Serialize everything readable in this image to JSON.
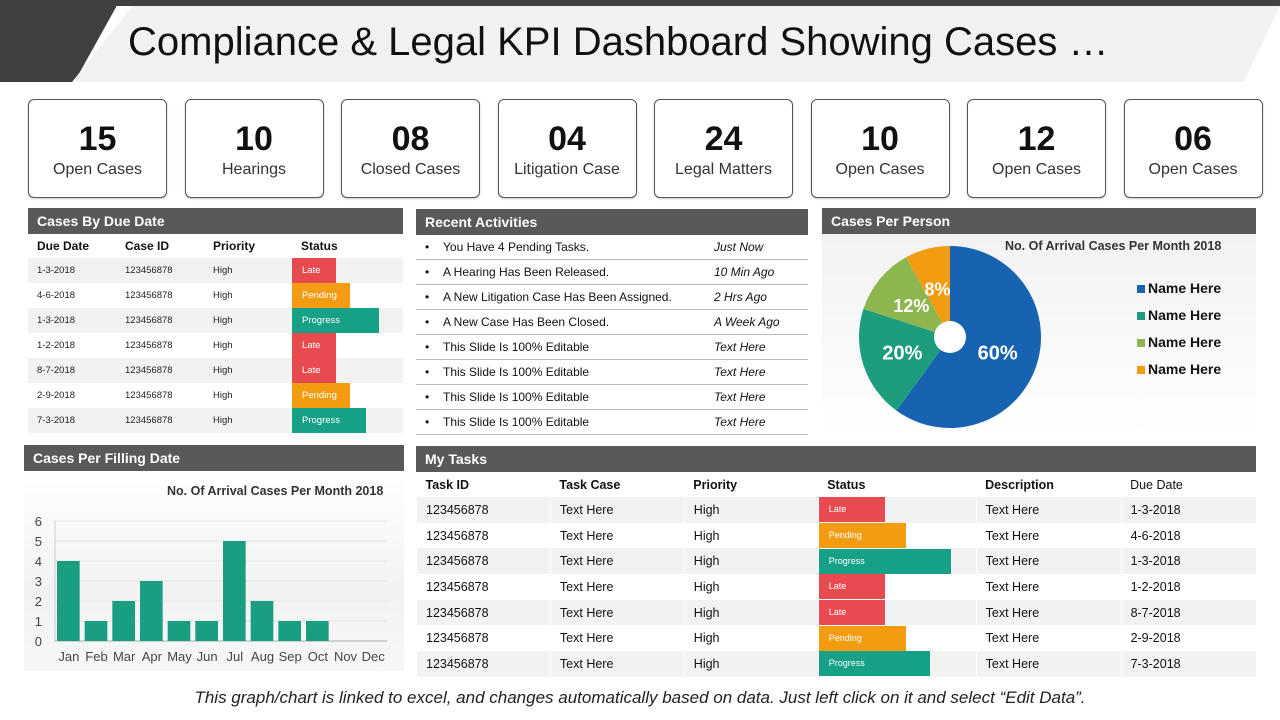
{
  "title": "Compliance & Legal KPI Dashboard Showing Cases …",
  "kpis": [
    {
      "value": "15",
      "label": "Open Cases"
    },
    {
      "value": "10",
      "label": "Hearings"
    },
    {
      "value": "08",
      "label": "Closed Cases"
    },
    {
      "value": "04",
      "label": "Litigation Case"
    },
    {
      "value": "24",
      "label": "Legal Matters"
    },
    {
      "value": "10",
      "label": "Open Cases"
    },
    {
      "value": "12",
      "label": "Open Cases"
    },
    {
      "value": "06",
      "label": "Open Cases"
    }
  ],
  "due": {
    "title": "Cases By Due Date",
    "headers": [
      "Due Date",
      "Case ID",
      "Priority",
      "Status"
    ],
    "rows": [
      [
        "1-3-2018",
        "123456878",
        "High",
        "Late"
      ],
      [
        "4-6-2018",
        "123456878",
        "High",
        "Pending"
      ],
      [
        "1-3-2018",
        "123456878",
        "High",
        "Progress"
      ],
      [
        "1-2-2018",
        "123456878",
        "High",
        "Late"
      ],
      [
        "8-7-2018",
        "123456878",
        "High",
        "Late"
      ],
      [
        "2-9-2018",
        "123456878",
        "High",
        "Pending"
      ],
      [
        "7-3-2018",
        "123456878",
        "High",
        "Progress"
      ]
    ]
  },
  "activities": {
    "title": "Recent Activities",
    "items": [
      [
        "You Have 4 Pending Tasks.",
        "Just Now"
      ],
      [
        "A Hearing Has Been Released.",
        "10 Min Ago"
      ],
      [
        "A New Litigation Case Has Been Assigned.",
        "2 Hrs Ago"
      ],
      [
        "A New Case Has Been Closed.",
        "A Week Ago"
      ],
      [
        "This Slide Is 100% Editable",
        "Text Here"
      ],
      [
        "This Slide Is 100% Editable",
        "Text Here"
      ],
      [
        "This Slide Is 100% Editable",
        "Text Here"
      ],
      [
        "This Slide Is 100% Editable",
        "Text Here"
      ]
    ]
  },
  "person": {
    "title": "Cases Per Person"
  },
  "filling": {
    "title": "Cases Per Filling Date"
  },
  "tasks": {
    "title": "My Tasks",
    "headers": [
      "Task ID",
      "Task Case",
      "Priority",
      "Status",
      "Description",
      "Due Date"
    ],
    "rows": [
      [
        "123456878",
        "Text Here",
        "High",
        "Late",
        "Text Here",
        "1-3-2018"
      ],
      [
        "123456878",
        "Text Here",
        "High",
        "Pending",
        "Text Here",
        "4-6-2018"
      ],
      [
        "123456878",
        "Text Here",
        "High",
        "Progress",
        "Text Here",
        "1-3-2018"
      ],
      [
        "123456878",
        "Text Here",
        "High",
        "Late",
        "Text Here",
        "1-2-2018"
      ],
      [
        "123456878",
        "Text Here",
        "High",
        "Late",
        "Text Here",
        "8-7-2018"
      ],
      [
        "123456878",
        "Text Here",
        "High",
        "Pending",
        "Text Here",
        "2-9-2018"
      ],
      [
        "123456878",
        "Text Here",
        "High",
        "Progress",
        "Text Here",
        "7-3-2018"
      ]
    ]
  },
  "colors": {
    "late": "#e84b4f",
    "pending": "#f39c12",
    "progress": "#16a085"
  },
  "footer": "This graph/chart is linked to excel, and changes automatically based on data. Just left click on it and select “Edit Data”.",
  "chart_data": [
    {
      "type": "pie",
      "title": "No. Of Arrival Cases Per Month 2018",
      "labels": [
        "Name Here",
        "Name Here",
        "Name Here",
        "Name Here"
      ],
      "values": [
        60,
        20,
        12,
        8
      ],
      "data_labels": [
        "60%",
        "20%",
        "12%",
        "8%"
      ],
      "colors": [
        "#1763b1",
        "#1d9c7e",
        "#8db64f",
        "#f39c12"
      ],
      "legend": "right"
    },
    {
      "type": "bar",
      "title": "No. Of Arrival Cases Per Month 2018",
      "categories": [
        "Jan",
        "Feb",
        "Mar",
        "Apr",
        "May",
        "Jun",
        "Jul",
        "Aug",
        "Sep",
        "Oct",
        "Nov",
        "Dec"
      ],
      "values": [
        4,
        1,
        2,
        3,
        1,
        1,
        5,
        2,
        1,
        1,
        0,
        0
      ],
      "ylim": [
        0,
        6
      ],
      "yticks": [
        "0",
        "1",
        "2",
        "3",
        "4",
        "5",
        "6"
      ],
      "color": "#1a9e82",
      "grid": true
    }
  ]
}
